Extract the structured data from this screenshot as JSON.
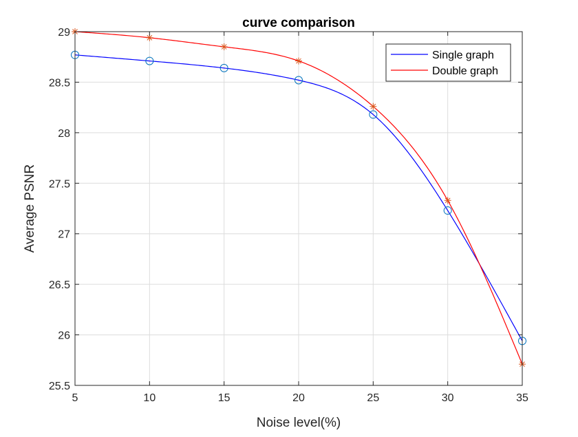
{
  "colors": {
    "single": "#0000ff",
    "double": "#ff0000",
    "single_marker": "#0072bd",
    "double_marker": "#d95319",
    "grid": "#dcdcdc",
    "axis": "#262626"
  },
  "chart_data": {
    "type": "line",
    "title": "curve comparison",
    "xlabel": "Noise level(%)",
    "ylabel": "Average PSNR",
    "x": [
      5,
      10,
      15,
      20,
      25,
      30,
      35
    ],
    "xlim": [
      5,
      35
    ],
    "ylim": [
      25.5,
      29
    ],
    "xticks": [
      5,
      10,
      15,
      20,
      25,
      30,
      35
    ],
    "yticks": [
      25.5,
      26,
      26.5,
      27,
      27.5,
      28,
      28.5,
      29
    ],
    "xtick_labels": [
      "5",
      "10",
      "15",
      "20",
      "25",
      "30",
      "35"
    ],
    "ytick_labels": [
      "25.5",
      "26",
      "26.5",
      "27",
      "27.5",
      "28",
      "28.5",
      "29"
    ],
    "grid": true,
    "legend_position": "top-right",
    "series": [
      {
        "name": "Single graph",
        "values": [
          28.77,
          28.71,
          28.64,
          28.52,
          28.18,
          27.23,
          25.94
        ],
        "marker": "circle",
        "line_color": "#0000ff",
        "marker_color": "#0072bd"
      },
      {
        "name": "Double graph",
        "values": [
          29.0,
          28.94,
          28.85,
          28.71,
          28.26,
          27.33,
          25.71
        ],
        "marker": "asterisk",
        "line_color": "#ff0000",
        "marker_color": "#d95319"
      }
    ]
  }
}
